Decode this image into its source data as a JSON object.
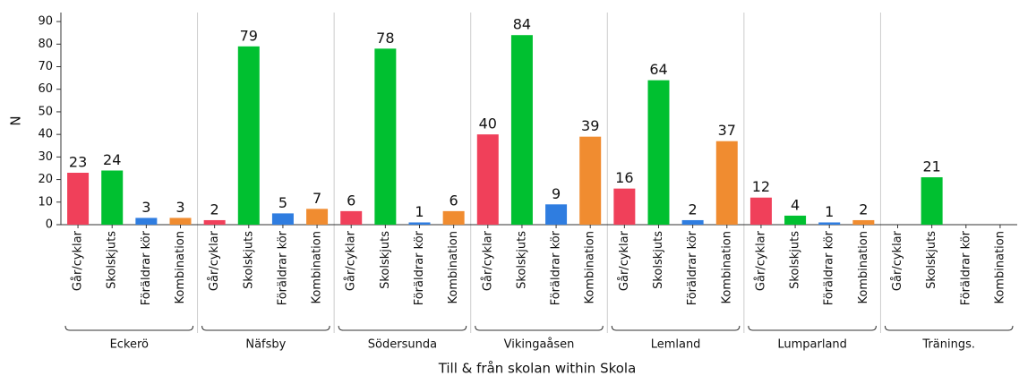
{
  "chart_data": {
    "type": "bar",
    "categories": [
      "Eckerö",
      "Näfsby",
      "Södersunda",
      "Vikingaåsen",
      "Lemland",
      "Lumparland",
      "Tränings."
    ],
    "series": [
      {
        "name": "Går/cyklar",
        "color": "#f0405a",
        "values": [
          23,
          2,
          6,
          40,
          16,
          12,
          null
        ]
      },
      {
        "name": "Skolskjuts",
        "color": "#00c030",
        "values": [
          24,
          79,
          78,
          84,
          64,
          4,
          21
        ]
      },
      {
        "name": "Föräldrar kör",
        "color": "#2f7de0",
        "values": [
          3,
          5,
          1,
          9,
          2,
          1,
          null
        ]
      },
      {
        "name": "Kombination",
        "color": "#f08c30",
        "values": [
          3,
          7,
          6,
          39,
          37,
          2,
          null
        ]
      }
    ],
    "ylabel": "N",
    "xlabel": "Till & från skolan within Skola",
    "ylim": [
      0,
      94
    ],
    "yticks": [
      0,
      10,
      20,
      30,
      40,
      50,
      60,
      70,
      80,
      90
    ]
  }
}
